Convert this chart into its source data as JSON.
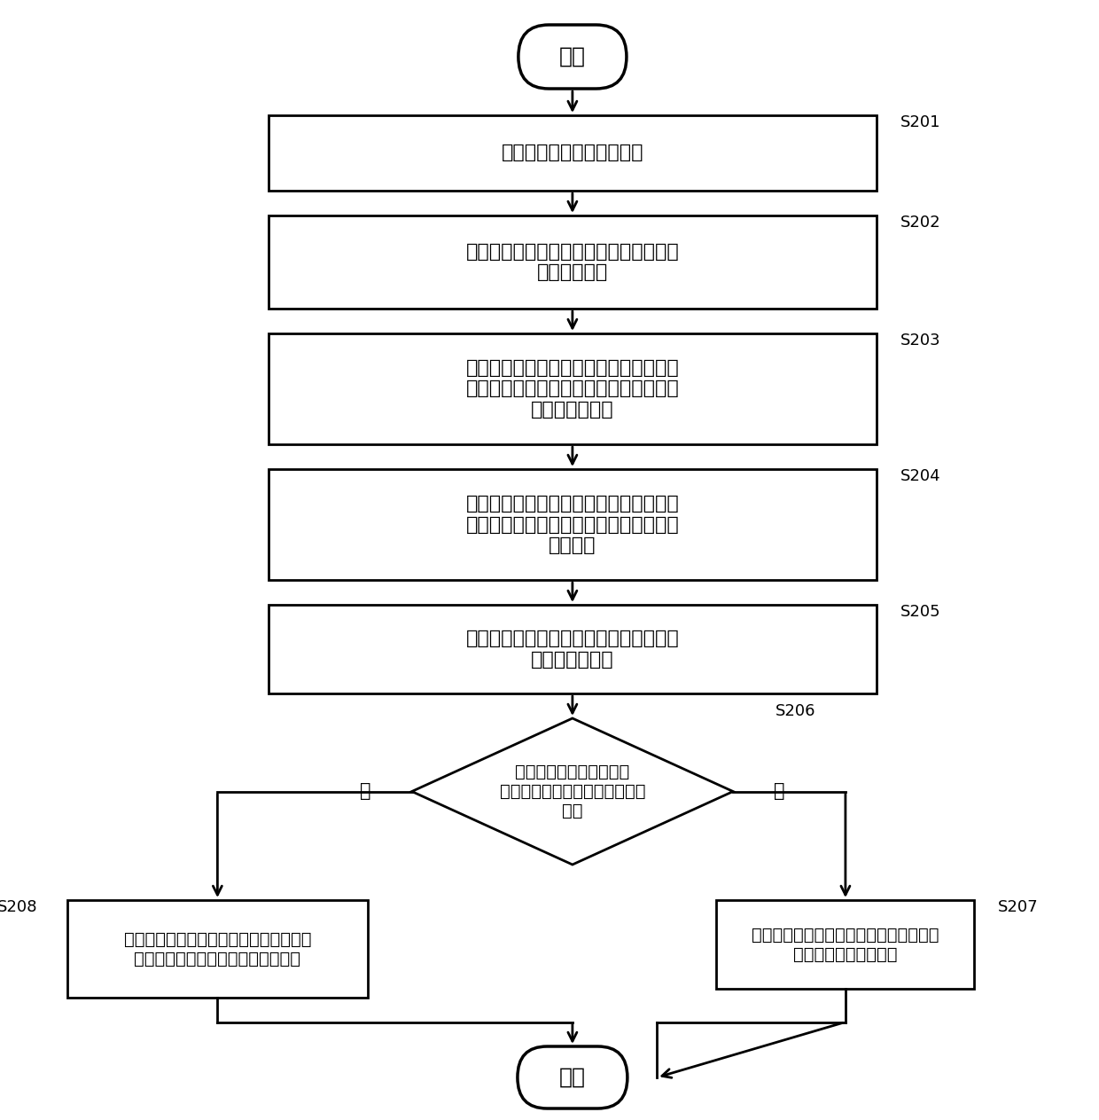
{
  "bg_color": "#ffffff",
  "line_color": "#000000",
  "text_color": "#000000",
  "start_label": "开始",
  "end_label": "结束",
  "steps": [
    {
      "id": "S201",
      "label": "接收来自客户端的数据消息"
    },
    {
      "id": "S202",
      "label": "通过至少一个处理器解析所述数据消息，\n确定目标订单"
    },
    {
      "id": "S203",
      "label": "根据用于预估接单时长比例的预估模型，\n通过至少一个处理器预估目标订单被接起\n的接单时长比例"
    },
    {
      "id": "S204",
      "label": "根据目标订单的接单时长比例，通过至少\n一个处理器确定对目标订单的配送价格的\n增加金额"
    },
    {
      "id": "S205",
      "label": "通过至少一个处理器获取针对目标订单增\n加后的配送价格"
    },
    {
      "id": "S206",
      "label": "通过至少一个处理器确定\n增加后的配送价格是否大于预设\n金额"
    },
    {
      "id": "S207",
      "label": "通过至少一个处理器根据增加后的配送价\n格为目标订单呆叫运力"
    },
    {
      "id": "S208",
      "label": "通过至少一个处理器将预设金额作为增加\n后的配送价格，为目标订单呆叫运力"
    }
  ],
  "yes_label": "是",
  "no_label": "否"
}
